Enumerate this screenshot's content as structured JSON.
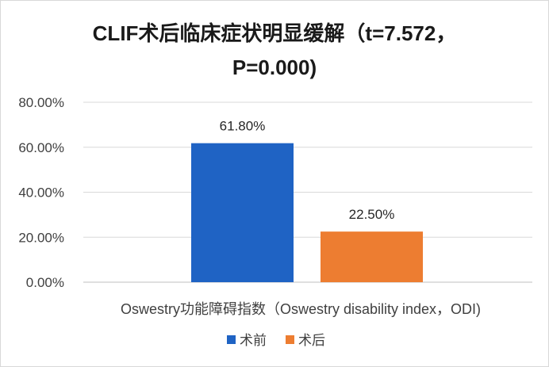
{
  "chart_data": {
    "type": "bar",
    "title_lines": [
      "CLIF术后临床症状明显缓解（t=7.572，",
      "P=0.000)"
    ],
    "categories": [
      "Oswestry功能障碍指数（Oswestry disability index，ODI)"
    ],
    "series": [
      {
        "name": "术前",
        "values": [
          61.8
        ],
        "label": "61.80%",
        "color": "#1f63c4"
      },
      {
        "name": "术后",
        "values": [
          22.5
        ],
        "label": "22.50%",
        "color": "#ed7d31"
      }
    ],
    "ylim": [
      0,
      80
    ],
    "y_ticks": [
      "0.00%",
      "20.00%",
      "40.00%",
      "60.00%",
      "80.00%"
    ],
    "y_tick_values": [
      0,
      20,
      40,
      60,
      80
    ],
    "grid": true,
    "legend": "bottom"
  }
}
